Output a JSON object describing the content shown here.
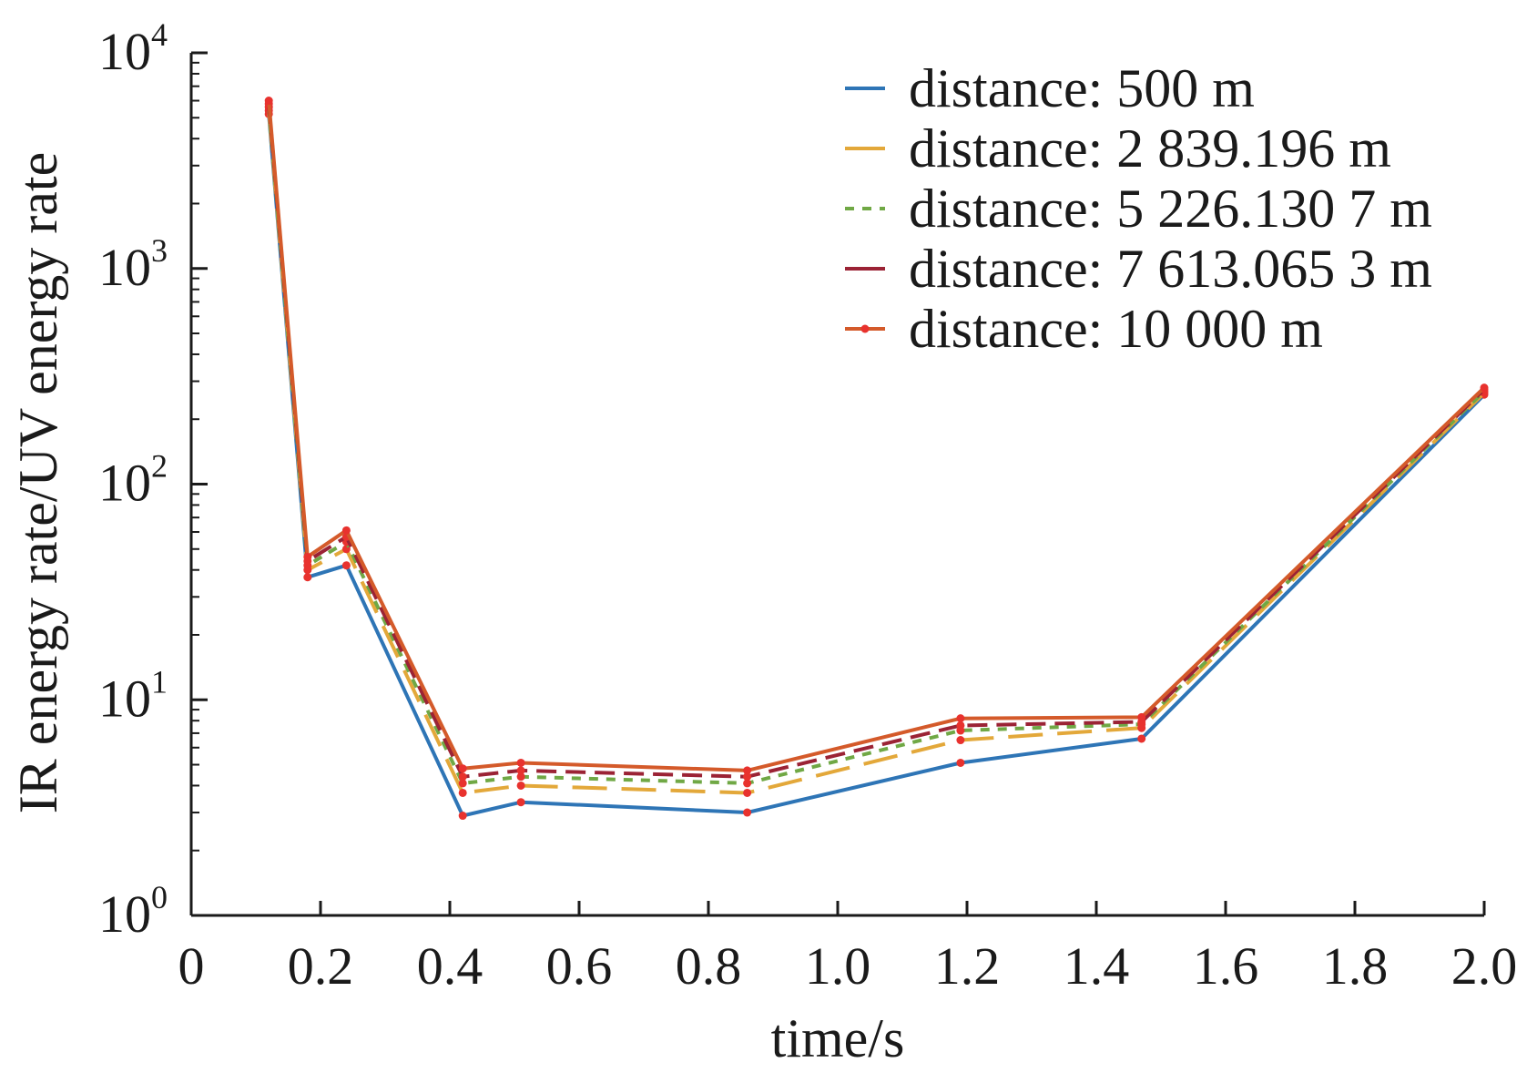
{
  "chart_data": {
    "type": "line",
    "xlabel": "time/s",
    "ylabel": "IR energy rate/UV energy rate",
    "xlim": [
      0,
      2.0
    ],
    "ylim": [
      1,
      10000
    ],
    "y_scale": "log",
    "grid": false,
    "legend_position": "top-right",
    "x_ticks": [
      "0",
      "0.2",
      "0.4",
      "0.6",
      "0.8",
      "1.0",
      "1.2",
      "1.4",
      "1.6",
      "1.8",
      "2.0"
    ],
    "y_ticks": [
      {
        "base": "10",
        "exp": "0",
        "value": 1
      },
      {
        "base": "10",
        "exp": "1",
        "value": 10
      },
      {
        "base": "10",
        "exp": "2",
        "value": 100
      },
      {
        "base": "10",
        "exp": "3",
        "value": 1000
      },
      {
        "base": "10",
        "exp": "4",
        "value": 10000
      }
    ],
    "x": [
      0.12,
      0.18,
      0.24,
      0.42,
      0.51,
      0.86,
      1.19,
      1.47,
      2.0
    ],
    "series": [
      {
        "name": "distance: 500 m",
        "color": "#2e75b6",
        "dash": "solid",
        "values": [
          5200,
          37,
          42,
          2.9,
          3.35,
          3.0,
          5.1,
          6.6,
          260
        ]
      },
      {
        "name": "distance: 2 839.196 m",
        "color": "#e3a83a",
        "dash": "long-dash",
        "values": [
          5400,
          40,
          50,
          3.7,
          4.0,
          3.7,
          6.5,
          7.4,
          265
        ]
      },
      {
        "name": "distance: 5 226.130 7 m",
        "color": "#70a845",
        "dash": "short-dash",
        "values": [
          5600,
          42,
          54,
          4.1,
          4.4,
          4.1,
          7.2,
          7.7,
          270
        ]
      },
      {
        "name": "distance: 7 613.065 3 m",
        "color": "#9b2335",
        "dash": "dash",
        "values": [
          5800,
          44,
          57,
          4.4,
          4.7,
          4.4,
          7.6,
          7.9,
          275
        ]
      },
      {
        "name": "distance: 10 000 m",
        "color": "#d45a2a",
        "dash": "solid-marker",
        "values": [
          6000,
          46,
          61,
          4.8,
          5.1,
          4.7,
          8.2,
          8.3,
          280
        ]
      }
    ]
  }
}
